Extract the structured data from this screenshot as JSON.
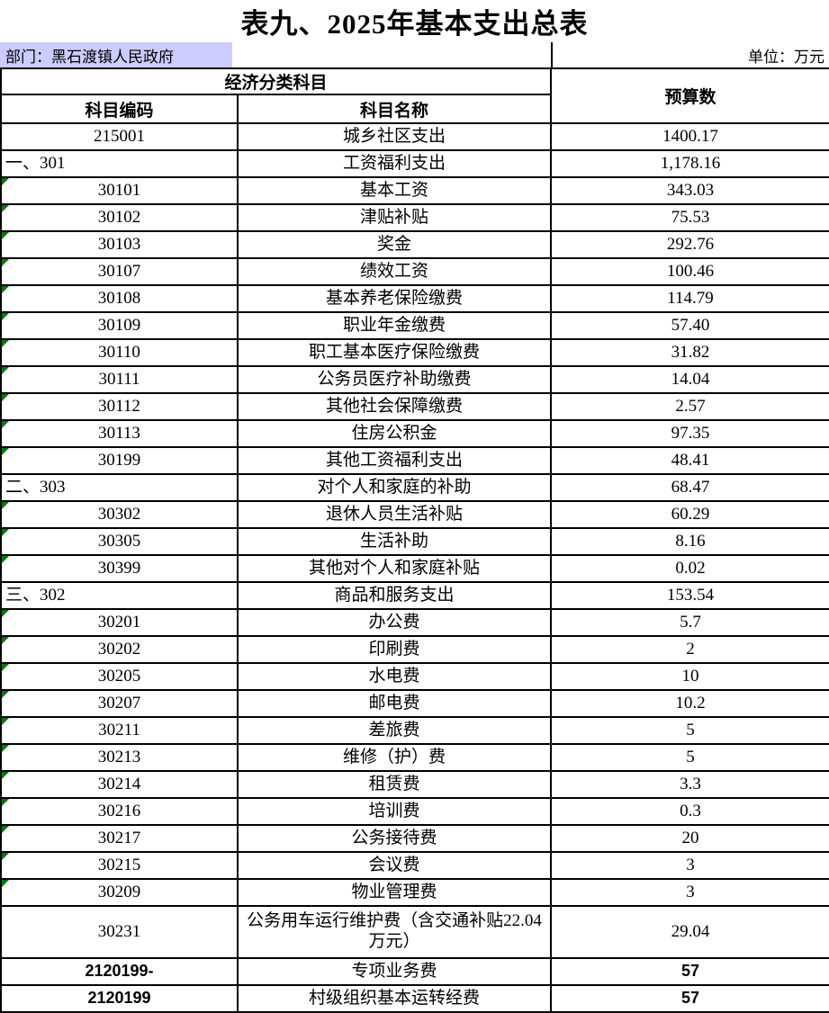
{
  "title": "表九、2025年基本支出总表",
  "meta": {
    "department": "部门：黑石渡镇人民政府",
    "unit": "单位：万元"
  },
  "table": {
    "header": {
      "group": "经济分类科目",
      "code": "科目编码",
      "name": "科目名称",
      "budget": "预算数"
    }
  },
  "colors": {
    "highlight": "#ccccff",
    "flag_green": "#007b00",
    "border": "#000000"
  },
  "rows": [
    {
      "code": "215001",
      "name": "城乡社区支出",
      "value": "1400.17",
      "code_align": "center",
      "flag": false,
      "tall": false,
      "sans": false
    },
    {
      "code": "一、301",
      "name": "工资福利支出",
      "value": "1,178.16",
      "code_align": "left",
      "flag": false,
      "tall": false,
      "sans": false
    },
    {
      "code": "30101",
      "name": "基本工资",
      "value": "343.03",
      "code_align": "center",
      "flag": true,
      "tall": false,
      "sans": false
    },
    {
      "code": "30102",
      "name": "津贴补贴",
      "value": "75.53",
      "code_align": "center",
      "flag": true,
      "tall": false,
      "sans": false
    },
    {
      "code": "30103",
      "name": "奖金",
      "value": "292.76",
      "code_align": "center",
      "flag": true,
      "tall": false,
      "sans": false
    },
    {
      "code": "30107",
      "name": "绩效工资",
      "value": "100.46",
      "code_align": "center",
      "flag": true,
      "tall": false,
      "sans": false
    },
    {
      "code": "30108",
      "name": "基本养老保险缴费",
      "value": "114.79",
      "code_align": "center",
      "flag": true,
      "tall": false,
      "sans": false
    },
    {
      "code": "30109",
      "name": "职业年金缴费",
      "value": "57.40",
      "code_align": "center",
      "flag": true,
      "tall": false,
      "sans": false
    },
    {
      "code": "30110",
      "name": "职工基本医疗保险缴费",
      "value": "31.82",
      "code_align": "center",
      "flag": true,
      "tall": false,
      "sans": false
    },
    {
      "code": "30111",
      "name": "公务员医疗补助缴费",
      "value": "14.04",
      "code_align": "center",
      "flag": true,
      "tall": false,
      "sans": false
    },
    {
      "code": "30112",
      "name": "其他社会保障缴费",
      "value": "2.57",
      "code_align": "center",
      "flag": true,
      "tall": false,
      "sans": false
    },
    {
      "code": "30113",
      "name": "住房公积金",
      "value": "97.35",
      "code_align": "center",
      "flag": true,
      "tall": false,
      "sans": false
    },
    {
      "code": "30199",
      "name": "其他工资福利支出",
      "value": "48.41",
      "code_align": "center",
      "flag": true,
      "tall": false,
      "sans": false
    },
    {
      "code": "二、303",
      "name": "对个人和家庭的补助",
      "value": "68.47",
      "code_align": "left",
      "flag": false,
      "tall": false,
      "sans": false
    },
    {
      "code": "30302",
      "name": "退休人员生活补贴",
      "value": "60.29",
      "code_align": "center",
      "flag": true,
      "tall": false,
      "sans": false
    },
    {
      "code": "30305",
      "name": "生活补助",
      "value": "8.16",
      "code_align": "center",
      "flag": true,
      "tall": false,
      "sans": false
    },
    {
      "code": "30399",
      "name": "其他对个人和家庭补贴",
      "value": "0.02",
      "code_align": "center",
      "flag": true,
      "tall": false,
      "sans": false
    },
    {
      "code": "三、302",
      "name": "商品和服务支出",
      "value": "153.54",
      "code_align": "left",
      "flag": false,
      "tall": false,
      "sans": false
    },
    {
      "code": "30201",
      "name": "办公费",
      "value": "5.7",
      "code_align": "center",
      "flag": true,
      "tall": false,
      "sans": false
    },
    {
      "code": "30202",
      "name": "印刷费",
      "value": "2",
      "code_align": "center",
      "flag": true,
      "tall": false,
      "sans": false
    },
    {
      "code": "30205",
      "name": "水电费",
      "value": "10",
      "code_align": "center",
      "flag": true,
      "tall": false,
      "sans": false
    },
    {
      "code": "30207",
      "name": "邮电费",
      "value": "10.2",
      "code_align": "center",
      "flag": true,
      "tall": false,
      "sans": false
    },
    {
      "code": "30211",
      "name": "差旅费",
      "value": "5",
      "code_align": "center",
      "flag": true,
      "tall": false,
      "sans": false
    },
    {
      "code": "30213",
      "name": "维修（护）费",
      "value": "5",
      "code_align": "center",
      "flag": true,
      "tall": false,
      "sans": false
    },
    {
      "code": "30214",
      "name": "租赁费",
      "value": "3.3",
      "code_align": "center",
      "flag": true,
      "tall": false,
      "sans": false
    },
    {
      "code": "30216",
      "name": "培训费",
      "value": "0.3",
      "code_align": "center",
      "flag": true,
      "tall": false,
      "sans": false
    },
    {
      "code": "30217",
      "name": "公务接待费",
      "value": "20",
      "code_align": "center",
      "flag": true,
      "tall": false,
      "sans": false
    },
    {
      "code": "30215",
      "name": "会议费",
      "value": "3",
      "code_align": "center",
      "flag": true,
      "tall": false,
      "sans": false
    },
    {
      "code": "30209",
      "name": "物业管理费",
      "value": "3",
      "code_align": "center",
      "flag": true,
      "tall": false,
      "sans": false
    },
    {
      "code": "30231",
      "name": "公务用车运行维护费（含交通补贴22.04万元）",
      "value": "29.04",
      "code_align": "center",
      "flag": false,
      "tall": true,
      "sans": false
    },
    {
      "code": "2120199-",
      "name": "专项业务费",
      "value": "57",
      "code_align": "center",
      "flag": false,
      "tall": false,
      "sans": true
    },
    {
      "code": "2120199",
      "name": "村级组织基本运转经费",
      "value": "57",
      "code_align": "center",
      "flag": false,
      "tall": false,
      "sans": true
    }
  ]
}
